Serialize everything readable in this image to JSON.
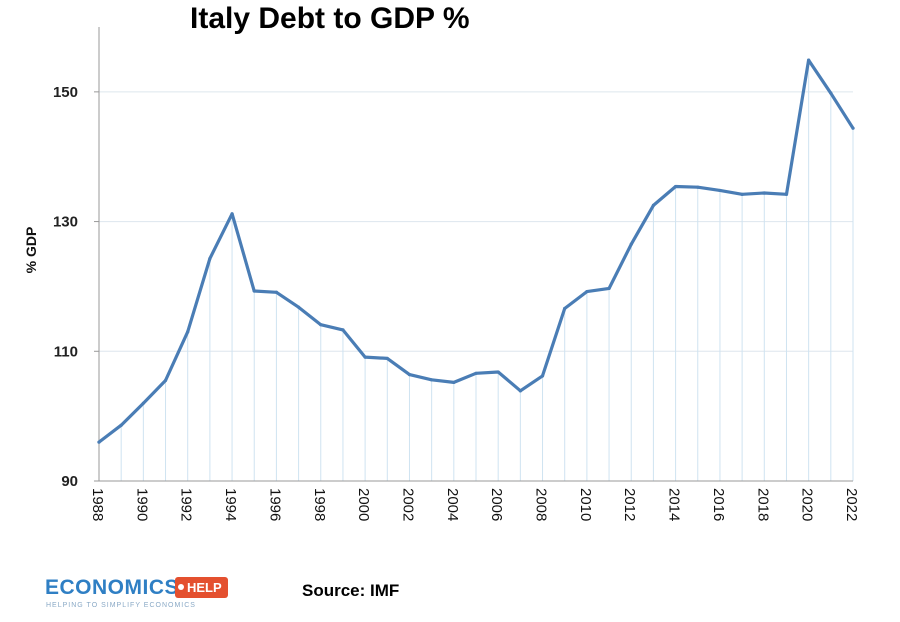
{
  "chart_data": {
    "type": "line",
    "title": "Italy Debt to GDP %",
    "xlabel": "",
    "ylabel": "% GDP",
    "x": [
      1988,
      1989,
      1990,
      1991,
      1992,
      1993,
      1994,
      1995,
      1996,
      1997,
      1998,
      1999,
      2000,
      2001,
      2002,
      2003,
      2004,
      2005,
      2006,
      2007,
      2008,
      2009,
      2010,
      2011,
      2012,
      2013,
      2014,
      2015,
      2016,
      2017,
      2018,
      2019,
      2020,
      2021,
      2022
    ],
    "series": [
      {
        "values": [
          96.0,
          98.6,
          102.0,
          105.5,
          113.0,
          124.3,
          131.2,
          119.3,
          119.1,
          116.8,
          114.1,
          113.3,
          109.1,
          108.9,
          106.4,
          105.6,
          105.2,
          106.6,
          106.8,
          103.9,
          106.2,
          116.6,
          119.2,
          119.7,
          126.5,
          132.5,
          135.4,
          135.3,
          134.8,
          134.2,
          134.4,
          134.2,
          154.9,
          149.8,
          144.4
        ],
        "color": "#4a7db5"
      }
    ],
    "xticks": [
      "1988",
      "1990",
      "1992",
      "1994",
      "1996",
      "1998",
      "2000",
      "2002",
      "2004",
      "2006",
      "2008",
      "2010",
      "2012",
      "2014",
      "2016",
      "2018",
      "2020",
      "2022"
    ],
    "yticks": [
      "90",
      "110",
      "130",
      "150"
    ],
    "ylim": [
      90,
      160
    ],
    "xlim": [
      1988,
      2022
    ],
    "grid": true,
    "annotations": [
      "Source: IMF"
    ]
  },
  "logo": {
    "word": "ECONOMICS",
    "badge": "HELP",
    "tagline": "HELPING TO SIMPLIFY ECONOMICS"
  }
}
